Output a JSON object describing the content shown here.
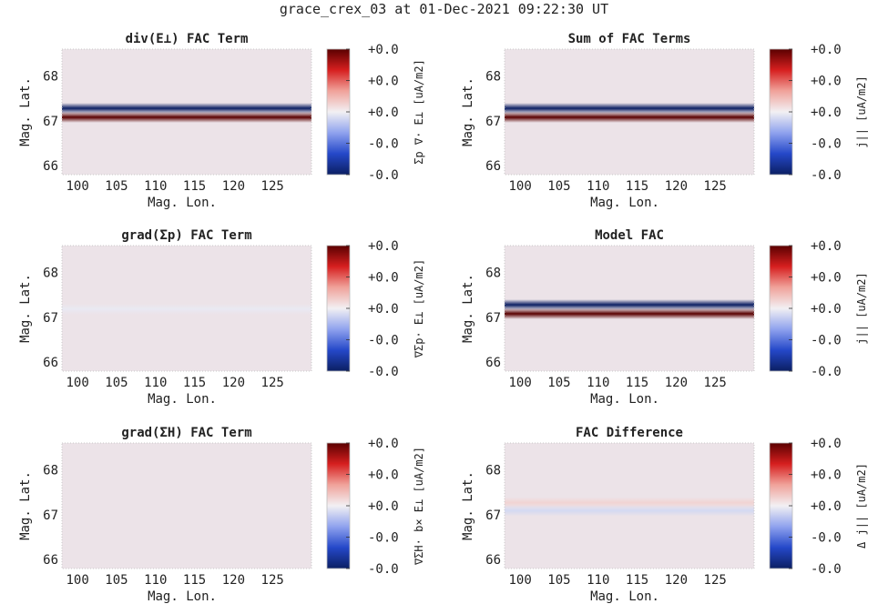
{
  "figure_title": "grace_crex_03 at 01-Dec-2021 09:22:30 UT",
  "colors": {
    "background_field": "#ece3e8",
    "axis_text": "#222222",
    "colormap": [
      "#0b1f63",
      "#2548c9",
      "#8fa2ee",
      "#f2f0f3",
      "#f0a29a",
      "#d61f1f",
      "#5a0000"
    ]
  },
  "chart_data": [
    {
      "type": "heatmap",
      "title": "div(E⊥) FAC Term",
      "xlabel": "Mag. Lon.",
      "ylabel": "Mag. Lat.",
      "xticks": [
        "100",
        "105",
        "110",
        "115",
        "120",
        "125"
      ],
      "yticks": [
        "66",
        "67",
        "68"
      ],
      "xlim": [
        98,
        130
      ],
      "ylim": [
        65.8,
        68.6
      ],
      "colorbar_label": "Σp ∇· E⊥ [uA/m2]",
      "colorbar_ticks": [
        "+0.0",
        "+0.0",
        "+0.0",
        "-0.0",
        "-0.0"
      ],
      "bands": [
        {
          "lat": 67.28,
          "value": -1.0
        },
        {
          "lat": 67.08,
          "value": 1.0
        }
      ]
    },
    {
      "type": "heatmap",
      "title": "Sum of FAC Terms",
      "xlabel": "Mag. Lon.",
      "ylabel": "Mag. Lat.",
      "xticks": [
        "100",
        "105",
        "110",
        "115",
        "120",
        "125"
      ],
      "yticks": [
        "66",
        "67",
        "68"
      ],
      "xlim": [
        98,
        130
      ],
      "ylim": [
        65.8,
        68.6
      ],
      "colorbar_label": "j|| [uA/m2]",
      "colorbar_ticks": [
        "+0.0",
        "+0.0",
        "+0.0",
        "-0.0",
        "-0.0"
      ],
      "bands": [
        {
          "lat": 67.28,
          "value": -1.0
        },
        {
          "lat": 67.08,
          "value": 1.0
        }
      ]
    },
    {
      "type": "heatmap",
      "title": "grad(Σp) FAC Term",
      "xlabel": "Mag. Lon.",
      "ylabel": "Mag. Lat.",
      "xticks": [
        "100",
        "105",
        "110",
        "115",
        "120",
        "125"
      ],
      "yticks": [
        "66",
        "67",
        "68"
      ],
      "xlim": [
        98,
        130
      ],
      "ylim": [
        65.8,
        68.6
      ],
      "colorbar_label": "∇Σp· E⊥ [uA/m2]",
      "colorbar_ticks": [
        "+0.0",
        "+0.0",
        "+0.0",
        "-0.0",
        "-0.0"
      ],
      "bands": [
        {
          "lat": 67.18,
          "value": -0.03
        }
      ]
    },
    {
      "type": "heatmap",
      "title": "Model FAC",
      "xlabel": "Mag. Lon.",
      "ylabel": "Mag. Lat.",
      "xticks": [
        "100",
        "105",
        "110",
        "115",
        "120",
        "125"
      ],
      "yticks": [
        "66",
        "67",
        "68"
      ],
      "xlim": [
        98,
        130
      ],
      "ylim": [
        65.8,
        68.6
      ],
      "colorbar_label": "j|| [uA/m2]",
      "colorbar_ticks": [
        "+0.0",
        "+0.0",
        "+0.0",
        "-0.0",
        "-0.0"
      ],
      "bands": [
        {
          "lat": 67.28,
          "value": -1.0
        },
        {
          "lat": 67.08,
          "value": 1.0
        }
      ]
    },
    {
      "type": "heatmap",
      "title": "grad(ΣH) FAC Term",
      "xlabel": "Mag. Lon.",
      "ylabel": "Mag. Lat.",
      "xticks": [
        "100",
        "105",
        "110",
        "115",
        "120",
        "125"
      ],
      "yticks": [
        "66",
        "67",
        "68"
      ],
      "xlim": [
        98,
        130
      ],
      "ylim": [
        65.8,
        68.6
      ],
      "colorbar_label": "∇ΣH· b× E⊥ [uA/m2]",
      "colorbar_ticks": [
        "+0.0",
        "+0.0",
        "+0.0",
        "-0.0",
        "-0.0"
      ],
      "bands": []
    },
    {
      "type": "heatmap",
      "title": "FAC Difference",
      "xlabel": "Mag. Lon.",
      "ylabel": "Mag. Lat.",
      "xticks": [
        "100",
        "105",
        "110",
        "115",
        "120",
        "125"
      ],
      "yticks": [
        "66",
        "67",
        "68"
      ],
      "xlim": [
        98,
        130
      ],
      "ylim": [
        65.8,
        68.6
      ],
      "colorbar_label": "Δ j|| [uA/m2]",
      "colorbar_ticks": [
        "+0.0",
        "+0.0",
        "+0.0",
        "-0.0",
        "-0.0"
      ],
      "bands": [
        {
          "lat": 67.27,
          "value": 0.12
        },
        {
          "lat": 67.09,
          "value": -0.1
        }
      ]
    }
  ]
}
